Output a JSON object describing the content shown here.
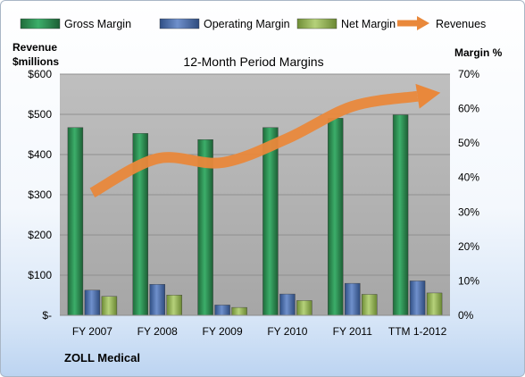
{
  "chart_data": {
    "type": "bar",
    "title": "12-Month Period Margins",
    "left_axis_label_line1": "Revenue",
    "left_axis_label_line2": "$millions",
    "right_axis_label": "Margin %",
    "company": "ZOLL Medical",
    "categories": [
      "FY 2007",
      "FY 2008",
      "FY 2009",
      "FY 2010",
      "FY 2011",
      "TTM 1-2012"
    ],
    "left_ticks": [
      "$-",
      "$100",
      "$200",
      "$300",
      "$400",
      "$500",
      "$600"
    ],
    "right_ticks": [
      "0%",
      "10%",
      "20%",
      "30%",
      "40%",
      "50%",
      "60%",
      "70%"
    ],
    "ylim_left": [
      0,
      600
    ],
    "ylim_right": [
      0,
      70
    ],
    "grid": true,
    "legend_position": "top",
    "series": [
      {
        "name": "Gross Margin",
        "axis": "right",
        "color": "#2e8b57",
        "values": [
          54.5,
          52.8,
          51.0,
          54.5,
          57.2,
          58.2
        ]
      },
      {
        "name": "Operating Margin",
        "axis": "right",
        "color": "#4a6fb0",
        "values": [
          7.3,
          9.0,
          3.0,
          6.2,
          9.3,
          10.0
        ]
      },
      {
        "name": "Net Margin",
        "axis": "right",
        "color": "#9bbb59",
        "values": [
          5.5,
          5.9,
          2.3,
          4.3,
          6.1,
          6.5
        ]
      },
      {
        "name": "Revenues",
        "axis": "left",
        "color": "#e9883b",
        "values": [
          305,
          390,
          380,
          440,
          520,
          545
        ]
      }
    ]
  }
}
